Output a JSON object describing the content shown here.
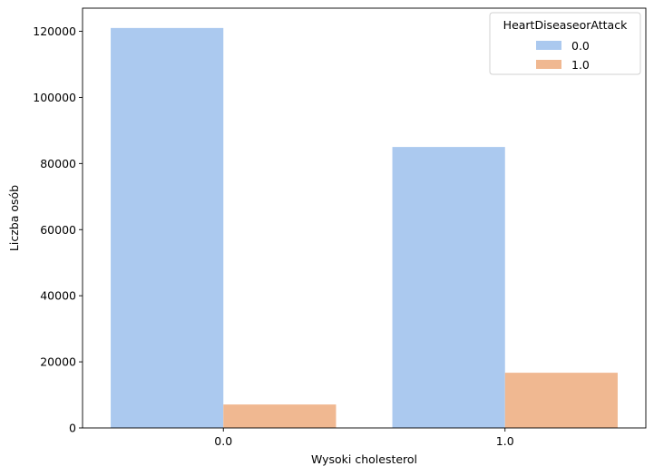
{
  "chart_data": {
    "type": "bar",
    "title": "",
    "xlabel": "Wysoki cholesterol",
    "ylabel": "Liczba osób",
    "categories": [
      "0.0",
      "1.0"
    ],
    "series": [
      {
        "name": "0.0",
        "values": [
          121000,
          85000
        ],
        "color": "#abc9ef"
      },
      {
        "name": "1.0",
        "values": [
          7100,
          16700
        ],
        "color": "#f0b891"
      }
    ],
    "ylim": [
      0,
      127000
    ],
    "yticks": [
      0,
      20000,
      40000,
      60000,
      80000,
      100000,
      120000
    ],
    "ytick_labels": [
      "0",
      "20000",
      "40000",
      "60000",
      "80000",
      "100000",
      "120000"
    ],
    "legend": {
      "title": "HeartDiseaseorAttack",
      "placement": "top-right"
    },
    "grid": false
  }
}
